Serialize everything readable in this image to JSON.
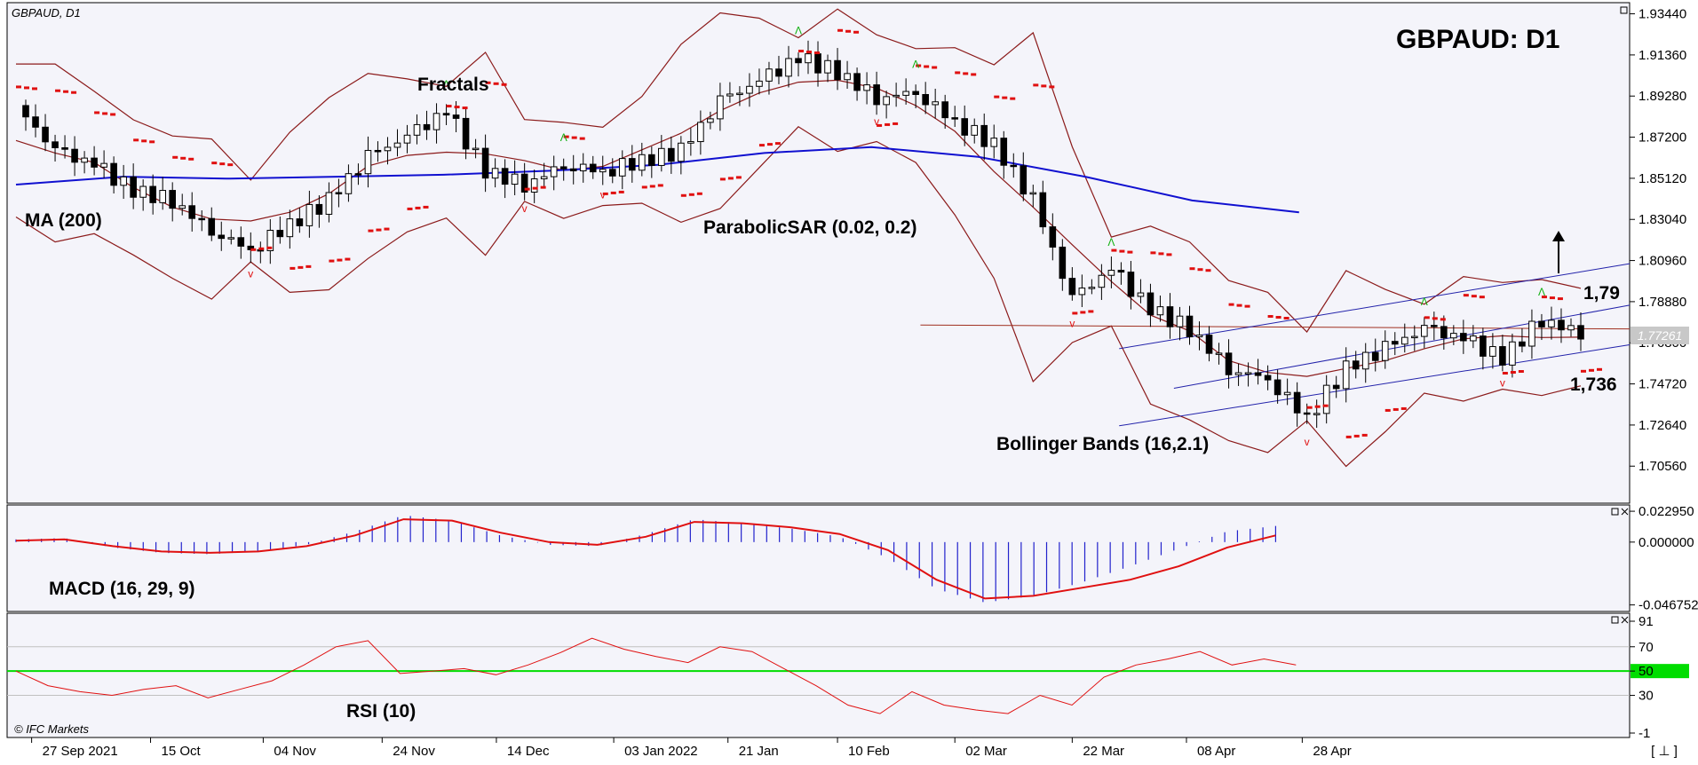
{
  "window": {
    "symbol_label": "GBPAUD, D1",
    "title": "GBPAUD: D1",
    "watermark": "© IFC Markets",
    "corner_label": "[ ⊥ ]"
  },
  "colors": {
    "background": "#f4f4fa",
    "grid": "#c0c0c0",
    "ma": "#1010d0",
    "bollinger": "#8b1a1a",
    "sar": "#e01010",
    "fractal_up": "#10b010",
    "fractal_down": "#e01010",
    "macd_hist": "#2222cc",
    "macd_signal": "#e01010",
    "rsi_line": "#e01010",
    "rsi_mid": "#00dd00",
    "channel": "#2222aa",
    "resistance": "#a03020",
    "price_tag_bg": "#c8c8c8"
  },
  "chart_data": [
    {
      "type": "candlestick",
      "title": "GBPAUD: D1",
      "x_ticks": [
        "27 Sep 2021",
        "15 Oct",
        "04 Nov",
        "24 Nov",
        "14 Dec",
        "03 Jan 2022",
        "21 Jan",
        "10 Feb",
        "02 Mar",
        "22 Mar",
        "08 Apr",
        "28 Apr"
      ],
      "y_ticks": [
        "1.93440",
        "1.91360",
        "1.89280",
        "1.87200",
        "1.85120",
        "1.83040",
        "1.80960",
        "1.78880",
        "1.76800",
        "1.74720",
        "1.72640",
        "1.70560"
      ],
      "ylim": [
        1.69,
        1.936
      ],
      "current_price_label": "1.77261",
      "current_price": 1.7726,
      "annotations": {
        "fractals": "Fractals",
        "ma": "MA (200)",
        "sar": "ParabolicSAR (0.02, 0.2)",
        "bollinger": "Bollinger Bands (16,2.1)",
        "resistance_label": "1,79",
        "support_label": "1,736"
      },
      "ma200": [
        1.848,
        1.852,
        1.851,
        1.852,
        1.853,
        1.855,
        1.858,
        1.864,
        1.867,
        1.862,
        1.852,
        1.84,
        1.834
      ],
      "candles_approx_close": [
        1.888,
        1.865,
        1.858,
        1.845,
        1.84,
        1.825,
        1.815,
        1.828,
        1.84,
        1.862,
        1.872,
        1.885,
        1.855,
        1.848,
        1.858,
        1.855,
        1.86,
        1.865,
        1.89,
        1.9,
        1.912,
        1.905,
        1.892,
        1.895,
        1.88,
        1.868,
        1.84,
        1.79,
        1.805,
        1.785,
        1.775,
        1.755,
        1.75,
        1.73,
        1.755,
        1.765,
        1.775,
        1.77,
        1.76,
        1.78,
        1.7726
      ]
    },
    {
      "type": "bar",
      "name": "MACD (16, 29, 9)",
      "y_ticks": [
        "0.022950",
        "0.000000",
        "-0.046752"
      ],
      "ylim": [
        -0.047,
        0.023
      ],
      "hist_approx": [
        0.002,
        0.003,
        -0.004,
        -0.008,
        -0.009,
        -0.007,
        -0.002,
        0.008,
        0.02,
        0.016,
        0.005,
        -0.002,
        -0.003,
        0.006,
        0.017,
        0.014,
        0.01,
        0.004,
        -0.012,
        -0.035,
        -0.045,
        -0.04,
        -0.03,
        -0.018,
        -0.005,
        0.008,
        0.012
      ],
      "signal_approx": [
        0.001,
        0.002,
        -0.003,
        -0.007,
        -0.008,
        -0.007,
        -0.003,
        0.005,
        0.017,
        0.016,
        0.007,
        0.0,
        -0.002,
        0.004,
        0.015,
        0.014,
        0.011,
        0.006,
        -0.006,
        -0.028,
        -0.042,
        -0.04,
        -0.034,
        -0.028,
        -0.018,
        -0.004,
        0.005
      ]
    },
    {
      "type": "line",
      "name": "RSI (10)",
      "y_ticks": [
        "91",
        "70",
        "50",
        "30",
        "-1"
      ],
      "ylim": [
        -1,
        91
      ],
      "mid_level": 50,
      "values_approx": [
        50,
        38,
        33,
        30,
        35,
        38,
        28,
        35,
        42,
        55,
        70,
        75,
        48,
        50,
        52,
        47,
        55,
        65,
        77,
        68,
        62,
        57,
        70,
        66,
        52,
        38,
        22,
        15,
        33,
        22,
        18,
        15,
        30,
        22,
        45,
        55,
        60,
        66,
        55,
        60,
        55
      ]
    }
  ]
}
